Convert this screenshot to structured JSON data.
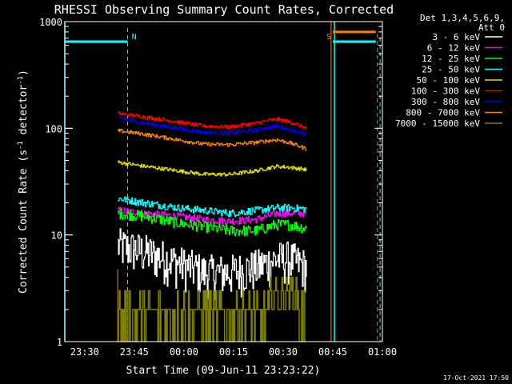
{
  "chart_data": {
    "type": "line",
    "title": "RHESSI Observing Summary Count Rates, Corrected",
    "xlabel": "Start Time (09-Jun-11 23:23:22)",
    "ylabel_main": "Corrected Count Rate (s",
    "ylabel_sup1": "-1",
    "ylabel_mid": " detector",
    "ylabel_sup2": "-1",
    "ylabel_end": ")",
    "yscale": "log",
    "ylim": [
      1,
      1000
    ],
    "xlim_minutes": [
      -6,
      90
    ],
    "x_ticks": [
      {
        "label": "23:30",
        "min": 0
      },
      {
        "label": "23:45",
        "min": 15
      },
      {
        "label": "00:00",
        "min": 30
      },
      {
        "label": "00:15",
        "min": 45
      },
      {
        "label": "00:30",
        "min": 60
      },
      {
        "label": "00:45",
        "min": 75
      },
      {
        "label": "01:00",
        "min": 90
      }
    ],
    "y_ticks": [
      {
        "label": "1",
        "value": 1
      },
      {
        "label": "10",
        "value": 10
      },
      {
        "label": "100",
        "value": 100
      },
      {
        "label": "1000",
        "value": 1000
      }
    ],
    "legend_header": [
      "Det 1,3,4,5,6,9,",
      "Att 0"
    ],
    "legend_placement": "right",
    "series": [
      {
        "name": "3 - 6 keV",
        "color": "#ffffff",
        "x": [
          10,
          18,
          28,
          36,
          44,
          52,
          58,
          62,
          67
        ],
        "values": [
          8,
          7,
          5.5,
          4.5,
          4.5,
          5,
          6,
          6,
          5
        ],
        "noise": 0.45
      },
      {
        "name": "6 - 12 keV",
        "color": "#ff00ff",
        "x": [
          10,
          18,
          28,
          36,
          44,
          52,
          58,
          62,
          67
        ],
        "values": [
          17,
          16,
          15,
          14,
          13.5,
          14,
          16,
          16,
          16
        ],
        "noise": 0.08
      },
      {
        "name": "12 - 25 keV",
        "color": "#00ff00",
        "x": [
          10,
          18,
          28,
          36,
          44,
          52,
          58,
          62,
          67
        ],
        "values": [
          16,
          15,
          13,
          12,
          11,
          11,
          12.5,
          12.5,
          11.5
        ],
        "noise": 0.12
      },
      {
        "name": "25 - 50 keV",
        "color": "#00ffff",
        "x": [
          10,
          18,
          28,
          36,
          44,
          52,
          58,
          62,
          67
        ],
        "values": [
          22,
          20,
          18,
          17,
          16,
          17,
          18,
          18,
          17.5
        ],
        "noise": 0.08
      },
      {
        "name": "50 - 100 keV",
        "color": "#e0e000",
        "x": [
          10,
          18,
          28,
          36,
          44,
          52,
          58,
          62,
          67
        ],
        "values": [
          48,
          44,
          40,
          37,
          37,
          40,
          44,
          43,
          41
        ],
        "noise": 0.04
      },
      {
        "name": "100 - 300 keV",
        "color": "#ff0000",
        "x": [
          10,
          18,
          28,
          36,
          44,
          52,
          58,
          62,
          67
        ],
        "values": [
          138,
          128,
          115,
          105,
          103,
          112,
          122,
          115,
          100
        ],
        "noise": 0.04
      },
      {
        "name": "300 - 800 keV",
        "color": "#0000ff",
        "x": [
          10,
          18,
          28,
          36,
          44,
          52,
          58,
          62,
          67
        ],
        "values": [
          125,
          112,
          100,
          92,
          90,
          97,
          105,
          98,
          87
        ],
        "noise": 0.04
      },
      {
        "name": "800 - 7000 keV",
        "color": "#ff8000",
        "x": [
          10,
          18,
          28,
          36,
          44,
          52,
          58,
          62,
          67
        ],
        "values": [
          95,
          88,
          78,
          71,
          70,
          74,
          78,
          73,
          64
        ],
        "noise": 0.04
      },
      {
        "name": "7000 - 15000 keV",
        "color": "#808000",
        "x": [
          10,
          18,
          28,
          36,
          44,
          52,
          58,
          62,
          67
        ],
        "values": [
          2,
          2,
          2,
          2,
          2,
          2,
          2.8,
          3,
          2
        ],
        "noise": 0,
        "discrete": [
          1,
          2,
          3,
          4
        ]
      }
    ],
    "markers": [
      {
        "label": "N",
        "color": "#00ffff",
        "min": 13
      },
      {
        "label": "S",
        "color": "#ff8000",
        "min": 75
      }
    ],
    "saa_bars": [
      {
        "color": "#00ffff",
        "x0": -6,
        "x1": 13,
        "value": 650
      },
      {
        "color": "#ff8000",
        "x0": 75,
        "x1": 88,
        "value": 800
      },
      {
        "color": "#00ffff",
        "x0": 75,
        "x1": 88,
        "value": 650
      }
    ],
    "cyan_vertical_lines_min": [
      -6,
      75.5
    ],
    "orange_vertical_lines_min": [
      10,
      74.5
    ],
    "orange_dashed_min": 88.5,
    "cyan_dashed_min": 89.3,
    "data_start_min": 10,
    "data_end_min": 67
  },
  "timestamp": "17-Oct-2021 17:50"
}
